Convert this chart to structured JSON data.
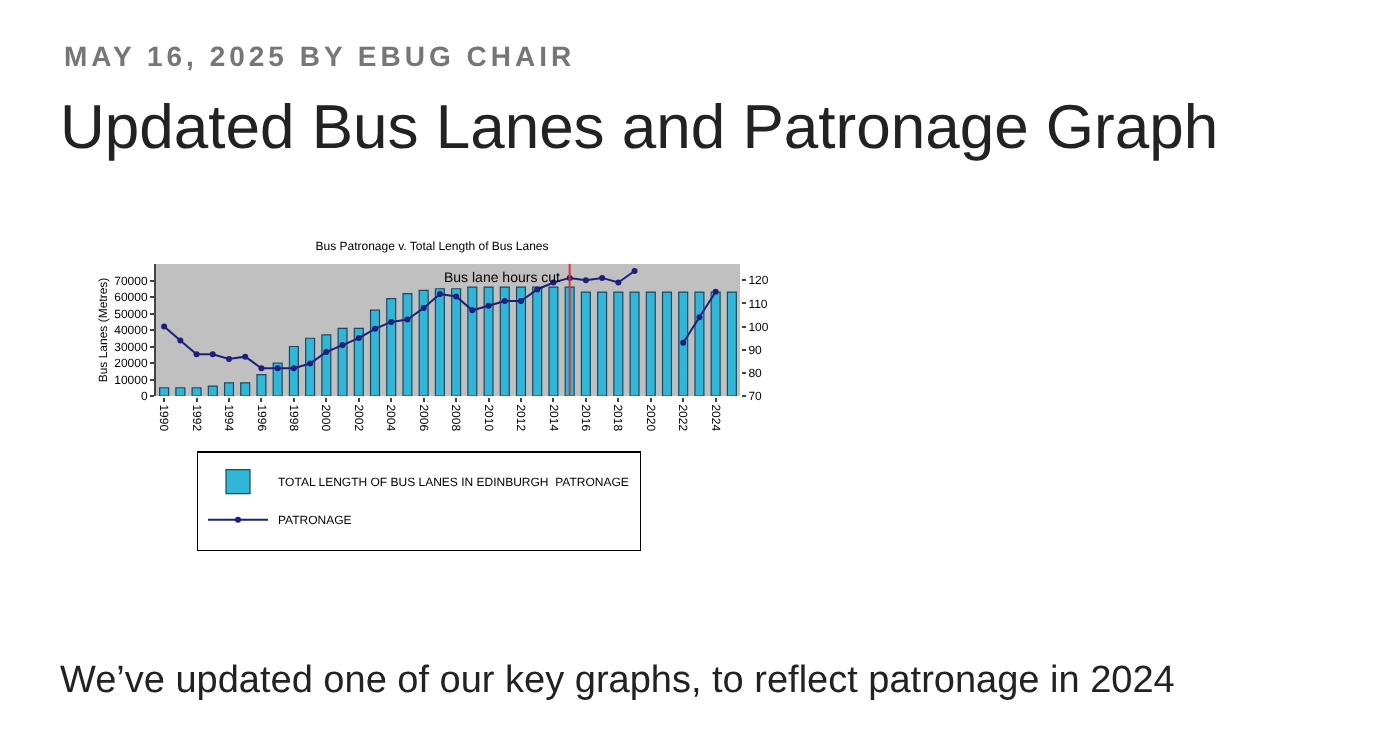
{
  "chart_data": {
    "type": "bar",
    "title": "Bus Patronage v. Total Length of Bus Lanes",
    "ylabel": "Bus Lanes (Metres)",
    "annotations": [
      "MAY 16, 2025 BY EBUG CHAIR",
      "Updated Bus Lanes and Patronage Graph",
      "We’ve updated one of our key graphs, to reflect patronage in 2024"
    ],
    "x": [
      1990,
      1991,
      1992,
      1993,
      1994,
      1995,
      1996,
      1997,
      1998,
      1999,
      2000,
      2001,
      2002,
      2003,
      2004,
      2005,
      2006,
      2007,
      2008,
      2009,
      2010,
      2011,
      2012,
      2013,
      2014,
      2015,
      2016,
      2017,
      2018,
      2019,
      2020,
      2021,
      2022,
      2023,
      2024,
      2025
    ],
    "series": [
      {
        "name": "TOTAL LENGTH OF BUS LANES IN EDINBURGH  PATRONAGE",
        "color": "#33b5d8",
        "values": [
          5000,
          5000,
          5000,
          6000,
          8000,
          8000,
          13000,
          20000,
          30000,
          35000,
          37000,
          41000,
          41000,
          52000,
          59000,
          62000,
          64000,
          65000,
          65000,
          66000,
          66000,
          66000,
          66000,
          66000,
          66000,
          66000,
          63000,
          63000,
          63000,
          63000,
          63000,
          63000,
          63000,
          63000,
          63000,
          63000
        ]
      },
      {
        "name": "PATRONAGE",
        "type": "line",
        "axis": "y2",
        "color": "#1f1f7a",
        "values": [
          100,
          94,
          88,
          88,
          86,
          87,
          82,
          82,
          82,
          84,
          89,
          92,
          95,
          99,
          102,
          103,
          108,
          114,
          113,
          107,
          109,
          111,
          111,
          116,
          119,
          121,
          120,
          121,
          119,
          124,
          null,
          null,
          93,
          104,
          115,
          null
        ]
      }
    ],
    "xlim": [
      1989.5,
      2025.5
    ],
    "xticks": [
      1990,
      1992,
      1994,
      1996,
      1998,
      2000,
      2002,
      2004,
      2006,
      2008,
      2010,
      2012,
      2014,
      2016,
      2018,
      2020,
      2022,
      2024
    ],
    "ylim": [
      0,
      80000
    ],
    "yticks": [
      0,
      10000,
      20000,
      30000,
      40000,
      50000,
      60000,
      70000
    ],
    "y2lim": [
      70,
      127
    ],
    "y2ticks": [
      70,
      80,
      90,
      100,
      110,
      120
    ],
    "ref_lines": [
      {
        "axis": "x",
        "value": 2015,
        "label": "Bus lane hours cut",
        "color": "#e03030"
      }
    ],
    "grid": false,
    "legend": "bottom",
    "marker": "circle",
    "line_style": "solid"
  }
}
